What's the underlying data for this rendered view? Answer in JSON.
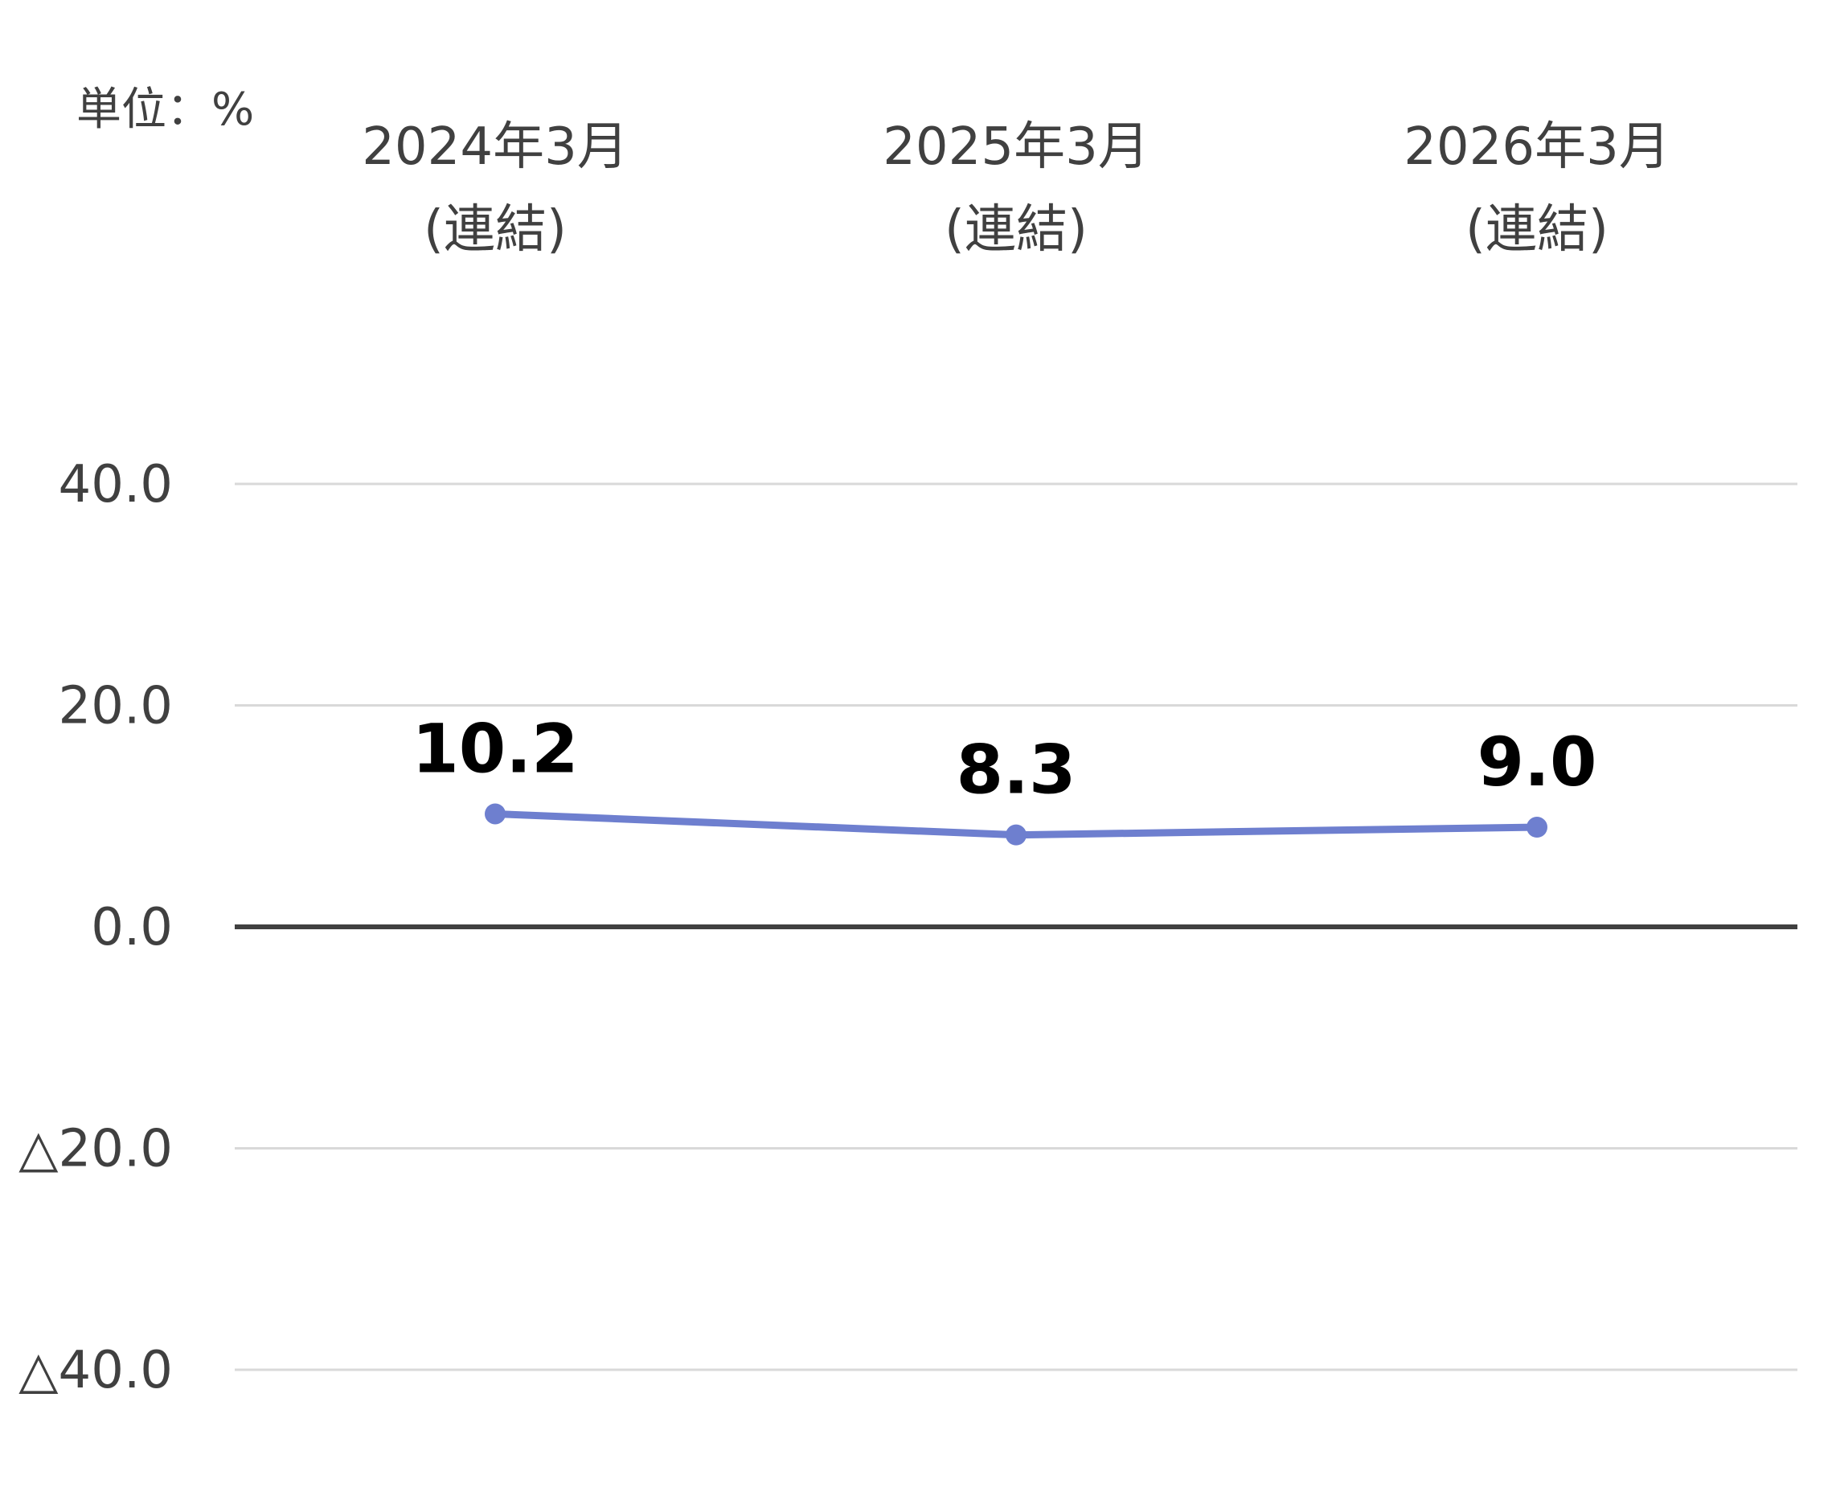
{
  "chart_data": {
    "type": "line",
    "unit_label": "単位：%",
    "categories": [
      [
        "2024年3月",
        "(連結)"
      ],
      [
        "2025年3月",
        "(連結)"
      ],
      [
        "2026年3月",
        "(連結)"
      ]
    ],
    "series": [
      {
        "values": [
          10.2,
          8.3,
          9.0
        ],
        "labels": [
          "10.2",
          "8.3",
          "9.0"
        ],
        "color": "#6e7fcf"
      }
    ],
    "y_ticks": [
      {
        "value": 40,
        "label": "40.0"
      },
      {
        "value": 20,
        "label": "20.0"
      },
      {
        "value": 0,
        "label": "0.0"
      },
      {
        "value": -20,
        "label": "△20.0"
      },
      {
        "value": -40,
        "label": "△40.0"
      }
    ],
    "ylim": [
      -40,
      40
    ],
    "grid": true,
    "legend": "none",
    "colors": {
      "text": "#404040",
      "grid": "#d9d9d9",
      "zero_line": "#404040",
      "data_label": "#000000"
    }
  }
}
